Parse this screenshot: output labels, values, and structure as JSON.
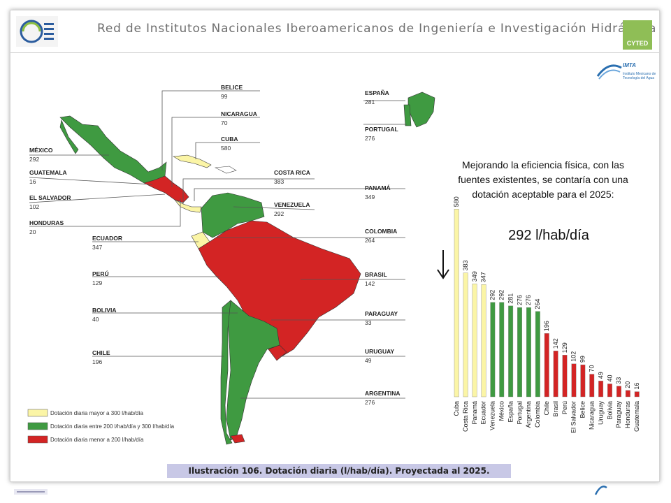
{
  "header": {
    "title": "Red de Institutos Nacionales Iberoamericanos de Ingeniería e Investigación Hidráulica",
    "cyted_label": "CYTED"
  },
  "imta": {
    "name": "IMTA",
    "subtitle": "Instituto Mexicano de Tecnología del Agua"
  },
  "annotation": {
    "text": "Mejorando la eficiencia física, con las fuentes existentes, se contaría con una dotación aceptable para el 2025:",
    "value": "292 l/hab/día"
  },
  "caption": "Ilustración 106.  Dotación diaria (l/hab/día). Proyectada al 2025.",
  "legend": [
    {
      "label": "Dotación diaria mayor a 300 l/hab/día",
      "color": "#fbf5a6"
    },
    {
      "label": "Dotación diaria entre 200 l/hab/día y 300 l/hab/día",
      "color": "#3f9a41"
    },
    {
      "label": "Dotación diaria menor a 200 l/hab/día",
      "color": "#d32424"
    }
  ],
  "map_labels": {
    "belice": {
      "name": "BELICE",
      "value": "99"
    },
    "nicaragua": {
      "name": "NICARAGUA",
      "value": "70"
    },
    "cuba": {
      "name": "CUBA",
      "value": "580"
    },
    "mexico": {
      "name": "MÉXICO",
      "value": "292"
    },
    "guatemala": {
      "name": "GUATEMALA",
      "value": "16"
    },
    "elsalvador": {
      "name": "EL SALVADOR",
      "value": "102"
    },
    "honduras": {
      "name": "HONDURAS",
      "value": "20"
    },
    "costarica": {
      "name": "COSTA RICA",
      "value": "383"
    },
    "venezuela": {
      "name": "VENEZUELA",
      "value": "292"
    },
    "ecuador": {
      "name": "ECUADOR",
      "value": "347"
    },
    "peru": {
      "name": "PERÚ",
      "value": "129"
    },
    "bolivia": {
      "name": "BOLIVIA",
      "value": "40"
    },
    "chile": {
      "name": "CHILE",
      "value": "196"
    },
    "espana": {
      "name": "ESPAÑA",
      "value": "281"
    },
    "portugal": {
      "name": "PORTUGAL",
      "value": "276"
    },
    "panama": {
      "name": "PANAMÁ",
      "value": "349"
    },
    "colombia": {
      "name": "COLOMBIA",
      "value": "264"
    },
    "brasil": {
      "name": "BRASIL",
      "value": "142"
    },
    "paraguay": {
      "name": "PARAGUAY",
      "value": "33"
    },
    "uruguay": {
      "name": "URUGUAY",
      "value": "49"
    },
    "argentina": {
      "name": "ARGENTINA",
      "value": "276"
    }
  },
  "chart_data": {
    "type": "bar",
    "title": "",
    "xlabel": "",
    "ylabel": "",
    "ylim": [
      0,
      600
    ],
    "grid": false,
    "categories": [
      "Cuba",
      "Costa Rica",
      "Panamá",
      "Ecuador",
      "Venezuela",
      "México",
      "España",
      "Portugal",
      "Argentina",
      "Colombia",
      "Chile",
      "Brasil",
      "Perú",
      "El Salvador",
      "Belice",
      "Nicaragua",
      "Uruguay",
      "Bolivia",
      "Paraguay",
      "Honduras",
      "Guatemala"
    ],
    "values": [
      580,
      383,
      349,
      347,
      292,
      292,
      281,
      276,
      276,
      264,
      196,
      142,
      129,
      102,
      99,
      70,
      49,
      40,
      33,
      20,
      16
    ],
    "colors": [
      "#fbf5a6",
      "#fbf5a6",
      "#fbf5a6",
      "#fbf5a6",
      "#3f9a41",
      "#3f9a41",
      "#3f9a41",
      "#3f9a41",
      "#3f9a41",
      "#3f9a41",
      "#d32424",
      "#d32424",
      "#d32424",
      "#d32424",
      "#d32424",
      "#d32424",
      "#d32424",
      "#d32424",
      "#d32424",
      "#d32424",
      "#d32424"
    ]
  }
}
